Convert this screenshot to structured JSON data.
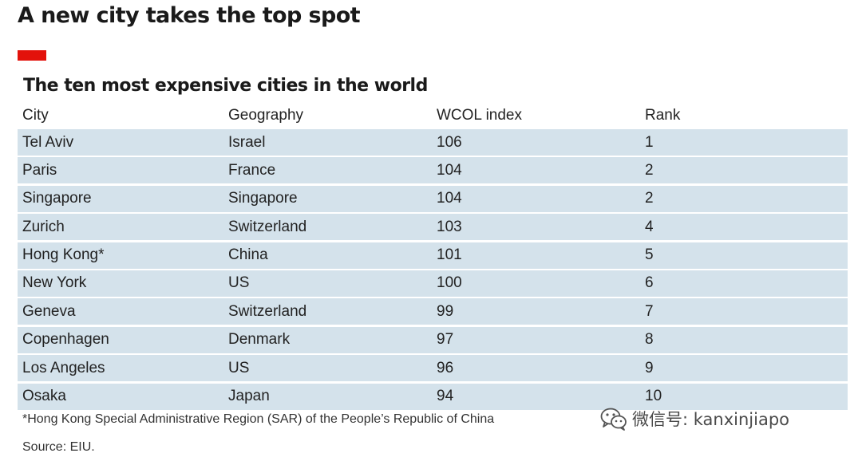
{
  "headline": "A new city takes the top spot",
  "accent_color": "#e3120b",
  "row_color": "#d4e2eb",
  "chart_data": {
    "type": "table",
    "title": "The ten most expensive cities in the world",
    "columns": [
      "City",
      "Geography",
      "WCOL index",
      "Rank"
    ],
    "rows": [
      [
        "Tel Aviv",
        "Israel",
        "106",
        "1"
      ],
      [
        "Paris",
        "France",
        "104",
        "2"
      ],
      [
        "Singapore",
        "Singapore",
        "104",
        "2"
      ],
      [
        "Zurich",
        "Switzerland",
        "103",
        "4"
      ],
      [
        "Hong Kong*",
        "China",
        "101",
        "5"
      ],
      [
        "New York",
        "US",
        "100",
        "6"
      ],
      [
        "Geneva",
        "Switzerland",
        "99",
        "7"
      ],
      [
        "Copenhagen",
        "Denmark",
        "97",
        "8"
      ],
      [
        "Los Angeles",
        "US",
        "96",
        "9"
      ],
      [
        "Osaka",
        "Japan",
        "94",
        "10"
      ]
    ],
    "footnote": "*Hong Kong Special Administrative Region (SAR) of the People’s Republic of China",
    "source": "Source: EIU."
  },
  "watermark": {
    "icon": "wechat-icon",
    "text": "微信号: kanxinjiapo"
  }
}
